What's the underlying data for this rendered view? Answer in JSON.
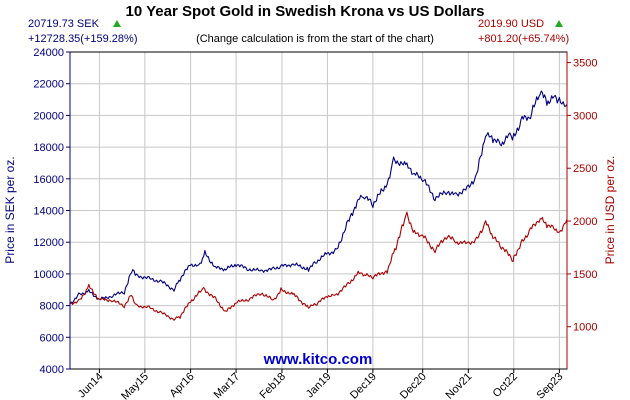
{
  "header": {
    "title": "10 Year Spot Gold in Swedish Krona vs US Dollars",
    "subtitle": "(Change calculation is from the start of the chart)",
    "sek_price": "20719.73 SEK",
    "sek_change": "+12728.35(+159.28%)",
    "usd_price": "2019.90 USD",
    "usd_change": "+801.20(+65.74%)",
    "up_arrow_color": "#22aa22"
  },
  "watermark": "www.kitco.com",
  "colors": {
    "sek": "#000080",
    "usd": "#aa0000",
    "grid": "#c8c8c8"
  },
  "chart_data": {
    "type": "line",
    "title": "10 Year Spot Gold in Swedish Krona vs US Dollars",
    "ylabel_left": "Price in SEK per oz.",
    "ylabel_right": "Price in USD per oz.",
    "xlim": [
      "2013-10-28",
      "2023-10-27"
    ],
    "ylim_left": [
      4000,
      24000
    ],
    "ylim_right": [
      600,
      3600
    ],
    "grid": true,
    "x_ticks": [
      {
        "label": "Jun14",
        "date": "2014-06-01"
      },
      {
        "label": "May15",
        "date": "2015-05-01"
      },
      {
        "label": "Apr16",
        "date": "2016-04-01"
      },
      {
        "label": "Mar17",
        "date": "2017-03-01"
      },
      {
        "label": "Feb18",
        "date": "2018-02-01"
      },
      {
        "label": "Jan19",
        "date": "2019-01-01"
      },
      {
        "label": "Dec19",
        "date": "2019-12-01"
      },
      {
        "label": "Dec20",
        "date": "2020-12-01"
      },
      {
        "label": "Nov21",
        "date": "2021-11-01"
      },
      {
        "label": "Oct22",
        "date": "2022-10-01"
      },
      {
        "label": "Sep23",
        "date": "2023-09-01"
      }
    ],
    "y_ticks_left": [
      4000,
      6000,
      8000,
      10000,
      12000,
      14000,
      16000,
      18000,
      20000,
      22000,
      24000
    ],
    "y_ticks_right": [
      1000,
      1500,
      2000,
      2500,
      3000,
      3500
    ],
    "series": [
      {
        "name": "SEK",
        "axis": "left",
        "x": [
          "2013-10-28",
          "2014-01-01",
          "2014-03-15",
          "2014-06-01",
          "2014-09-01",
          "2014-12-01",
          "2015-02-01",
          "2015-03-01",
          "2015-06-01",
          "2015-09-01",
          "2015-12-01",
          "2016-01-15",
          "2016-04-01",
          "2016-06-01",
          "2016-07-15",
          "2016-10-01",
          "2016-12-15",
          "2017-03-01",
          "2017-06-01",
          "2017-09-01",
          "2017-12-01",
          "2018-02-01",
          "2018-05-01",
          "2018-08-15",
          "2018-10-15",
          "2019-01-01",
          "2019-03-01",
          "2019-06-01",
          "2019-08-15",
          "2019-10-01",
          "2019-12-01",
          "2020-03-15",
          "2020-05-01",
          "2020-08-07",
          "2020-10-01",
          "2020-12-01",
          "2021-03-01",
          "2021-06-01",
          "2021-08-01",
          "2021-11-01",
          "2022-01-01",
          "2022-03-08",
          "2022-05-01",
          "2022-07-01",
          "2022-09-01",
          "2022-10-01",
          "2022-12-01",
          "2023-02-01",
          "2023-04-13",
          "2023-06-01",
          "2023-08-01",
          "2023-09-01",
          "2023-10-27"
        ],
        "values": [
          8100,
          8700,
          8900,
          8400,
          8600,
          8900,
          10300,
          9900,
          9700,
          9500,
          9000,
          9700,
          10600,
          10500,
          11300,
          10400,
          10300,
          10600,
          10300,
          10200,
          10300,
          10500,
          10600,
          10300,
          10800,
          11300,
          11400,
          13200,
          14700,
          14900,
          14400,
          15700,
          17200,
          16800,
          16300,
          16000,
          14800,
          15200,
          15000,
          15400,
          16200,
          18800,
          18500,
          18200,
          18800,
          18600,
          19800,
          19900,
          21600,
          20800,
          21200,
          20900,
          20700
        ]
      },
      {
        "name": "USD",
        "axis": "right",
        "x": [
          "2013-10-28",
          "2014-01-01",
          "2014-03-15",
          "2014-06-01",
          "2014-09-01",
          "2014-12-01",
          "2015-01-22",
          "2015-03-01",
          "2015-06-01",
          "2015-09-01",
          "2015-12-01",
          "2016-01-15",
          "2016-04-01",
          "2016-07-06",
          "2016-10-01",
          "2016-12-15",
          "2017-03-01",
          "2017-06-01",
          "2017-09-01",
          "2017-12-01",
          "2018-01-25",
          "2018-05-01",
          "2018-08-15",
          "2018-10-15",
          "2019-01-01",
          "2019-03-01",
          "2019-06-01",
          "2019-08-15",
          "2019-10-01",
          "2019-12-01",
          "2020-03-15",
          "2020-05-01",
          "2020-08-07",
          "2020-10-01",
          "2020-12-01",
          "2021-03-01",
          "2021-06-01",
          "2021-08-01",
          "2021-11-01",
          "2022-01-01",
          "2022-03-08",
          "2022-05-01",
          "2022-07-01",
          "2022-09-28",
          "2022-10-01",
          "2022-12-01",
          "2023-02-01",
          "2023-04-13",
          "2023-06-01",
          "2023-08-01",
          "2023-09-01",
          "2023-10-27"
        ],
        "values": [
          1219,
          1240,
          1380,
          1260,
          1250,
          1200,
          1300,
          1200,
          1180,
          1130,
          1070,
          1100,
          1240,
          1360,
          1260,
          1140,
          1230,
          1260,
          1320,
          1250,
          1350,
          1300,
          1180,
          1220,
          1290,
          1300,
          1400,
          1510,
          1490,
          1470,
          1530,
          1700,
          2060,
          1890,
          1860,
          1720,
          1870,
          1800,
          1790,
          1820,
          1990,
          1850,
          1760,
          1630,
          1660,
          1800,
          1920,
          2030,
          1960,
          1930,
          1890,
          2020
        ]
      }
    ]
  }
}
